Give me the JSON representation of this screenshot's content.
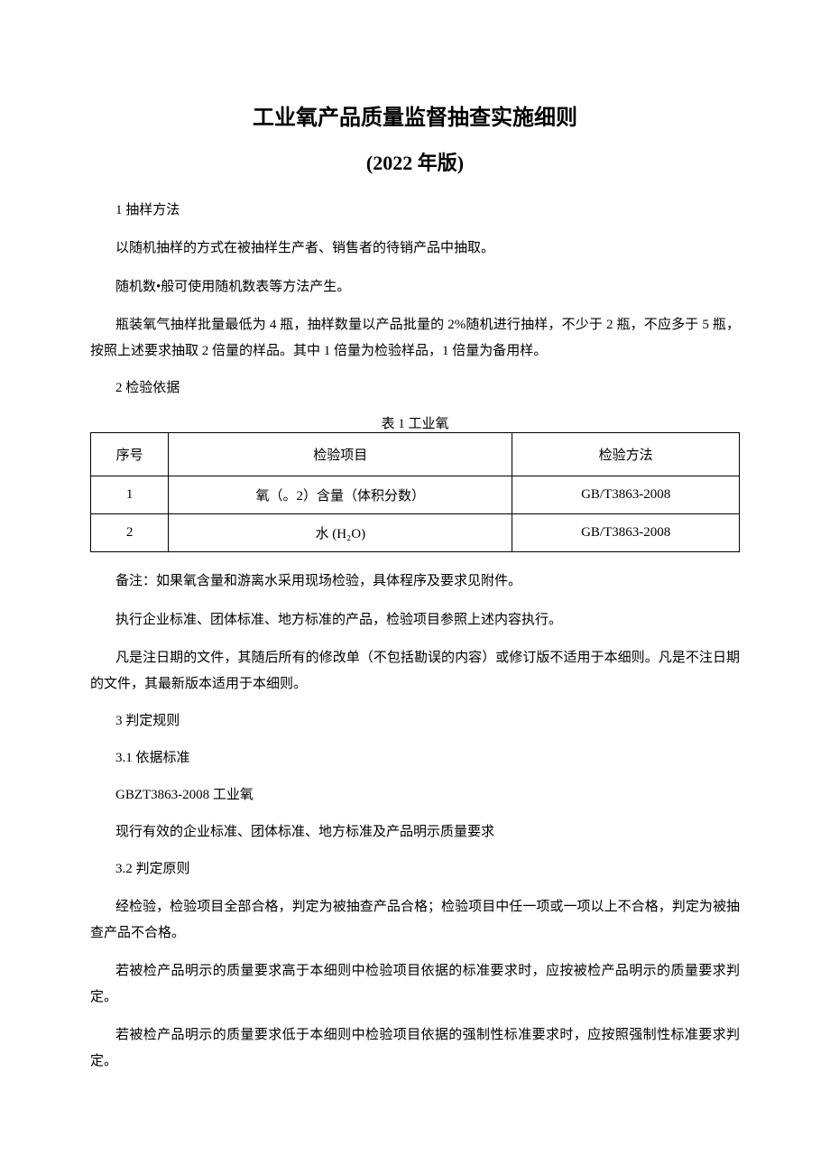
{
  "document": {
    "title_main": "工业氧产品质量监督抽查实施细则",
    "title_sub": "(2022 年版)",
    "section1": {
      "heading": "1 抽样方法",
      "p1": "以随机抽样的方式在被抽样生产者、销售者的待销产品中抽取。",
      "p2": "随机数•般可使用随机数表等方法产生。",
      "p3": "瓶装氧气抽样批量最低为 4 瓶，抽样数量以产品批量的 2%随机进行抽样，不少于 2 瓶，不应多于 5 瓶，按照上述要求抽取 2 倍量的样品。其中 1 倍量为检验样品，1 倍量为备用样。"
    },
    "section2": {
      "heading": "2 检验依据",
      "table_caption": "表 1 工业氧",
      "table": {
        "headers": {
          "seq": "序号",
          "item": "检验项目",
          "method": "检验方法"
        },
        "rows": [
          {
            "seq": "1",
            "item": "氧（。2）含量（体积分数）",
            "method": "GB/T3863-2008"
          },
          {
            "seq": "2",
            "item": "水 (H₂O)",
            "method": "GB/T3863-2008"
          }
        ]
      },
      "note": "备注：如果氧含量和游离水采用现场检验，具体程序及要求见附件。",
      "p1": "执行企业标准、团体标准、地方标准的产品，检验项目参照上述内容执行。",
      "p2": "凡是注日期的文件，其随后所有的修改单（不包括勘误的内容）或修订版不适用于本细则。凡是不注日期的文件，其最新版本适用于本细则。"
    },
    "section3": {
      "heading": "3 判定规则",
      "sub1": {
        "heading": "3.1  依据标准",
        "p1": "GBZT3863-2008 工业氧",
        "p2": "现行有效的企业标准、团体标准、地方标准及产品明示质量要求"
      },
      "sub2": {
        "heading": "3.2  判定原则",
        "p1": "经检验，检验项目全部合格，判定为被抽查产品合格；检验项目中任一项或一项以上不合格，判定为被抽查产品不合格。",
        "p2": "若被检产品明示的质量要求高于本细则中检验项目依据的标准要求时，应按被检产品明示的质量要求判定。",
        "p3": "若被检产品明示的质量要求低于本细则中检验项目依据的强制性标准要求时，应按照强制性标准要求判定。"
      }
    }
  }
}
